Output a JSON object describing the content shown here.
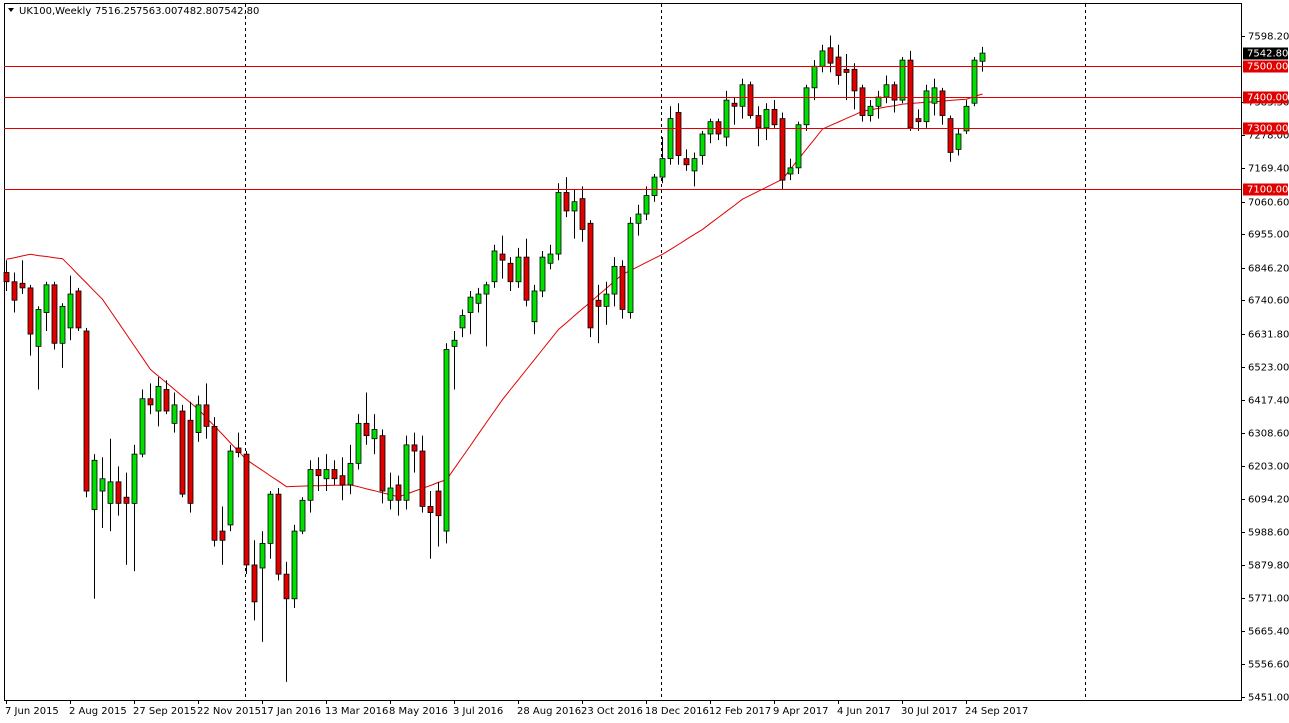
{
  "chart_data": {
    "type": "candlestick",
    "title": "UK100,Weekly",
    "header_values": [
      "7516.25",
      "7563.00",
      "7482.80",
      "7542.80"
    ],
    "up_color": "#00e000",
    "down_color": "#e00000",
    "wick_color": "#000000",
    "ma_color": "#e00000",
    "level_color": "#e00000",
    "ylim": [
      5441.2,
      7702.3
    ],
    "yticks": [
      {
        "value": 7598.2,
        "label": "7598.20"
      },
      {
        "value": 7383.5,
        "label": "7383.50"
      },
      {
        "value": 7278,
        "label": "7278.00"
      },
      {
        "value": 7169.4,
        "label": "7169.40"
      },
      {
        "value": 7060.6,
        "label": "7060.60"
      },
      {
        "value": 6955,
        "label": "6955.00"
      },
      {
        "value": 6846.2,
        "label": "6846.20"
      },
      {
        "value": 6740.6,
        "label": "6740.60"
      },
      {
        "value": 6631.8,
        "label": "6631.80"
      },
      {
        "value": 6523,
        "label": "6523.00"
      },
      {
        "value": 6417.4,
        "label": "6417.40"
      },
      {
        "value": 6308.6,
        "label": "6308.60"
      },
      {
        "value": 6203,
        "label": "6203.00"
      },
      {
        "value": 6094.2,
        "label": "6094.20"
      },
      {
        "value": 5988.6,
        "label": "5988.60"
      },
      {
        "value": 5879.8,
        "label": "5879.80"
      },
      {
        "value": 5771,
        "label": "5771.00"
      },
      {
        "value": 5665.4,
        "label": "5665.40"
      },
      {
        "value": 5556.6,
        "label": "5556.60"
      },
      {
        "value": 5451,
        "label": "5451.00"
      }
    ],
    "levels": [
      {
        "value": 7500,
        "label": "7500.00"
      },
      {
        "value": 7400,
        "label": "7400.00"
      },
      {
        "value": 7300,
        "label": "7300.00"
      },
      {
        "value": 7100,
        "label": "7100.00"
      }
    ],
    "last_price": {
      "value": 7542.8,
      "label": "7542.80"
    },
    "categories": [
      "7 Jun 2015",
      null,
      null,
      null,
      null,
      null,
      null,
      null,
      "2 Aug 2015",
      null,
      null,
      null,
      null,
      null,
      null,
      null,
      "27 Sep 2015",
      null,
      null,
      null,
      null,
      null,
      null,
      null,
      "22 Nov 2015",
      null,
      null,
      null,
      null,
      null,
      null,
      null,
      "17 Jan 2016",
      null,
      null,
      null,
      null,
      null,
      null,
      null,
      "13 Mar 2016",
      null,
      null,
      null,
      null,
      null,
      null,
      null,
      "8 May 2016",
      null,
      null,
      null,
      null,
      null,
      null,
      null,
      "3 Jul 2016",
      null,
      null,
      null,
      null,
      null,
      null,
      null,
      "28 Aug 2016",
      null,
      null,
      null,
      null,
      null,
      null,
      null,
      "23 Oct 2016",
      null,
      null,
      null,
      null,
      null,
      null,
      null,
      "18 Dec 2016",
      null,
      null,
      null,
      null,
      null,
      null,
      null,
      "12 Feb 2017",
      null,
      null,
      null,
      null,
      null,
      null,
      null,
      "9 Apr 2017",
      null,
      null,
      null,
      null,
      null,
      null,
      null,
      "4 Jun 2017",
      null,
      null,
      null,
      null,
      null,
      null,
      null,
      "30 Jul 2017",
      null,
      null,
      null,
      null,
      null,
      null,
      null,
      "24 Sep 2017",
      null,
      null
    ],
    "candles": [
      [
        6830,
        6870,
        6770,
        6800
      ],
      [
        6800,
        6830,
        6700,
        6740
      ],
      [
        6795,
        6870,
        6760,
        6780
      ],
      [
        6780,
        6790,
        6560,
        6630
      ],
      [
        6590,
        6720,
        6450,
        6710
      ],
      [
        6700,
        6800,
        6640,
        6790
      ],
      [
        6790,
        6800,
        6580,
        6600
      ],
      [
        6600,
        6730,
        6520,
        6720
      ],
      [
        6650,
        6820,
        6610,
        6760
      ],
      [
        6770,
        6780,
        6640,
        6650
      ],
      [
        6640,
        6650,
        6100,
        6120
      ],
      [
        6060,
        6240,
        5770,
        6220
      ],
      [
        6120,
        6230,
        6000,
        6160
      ],
      [
        6080,
        6290,
        5990,
        6150
      ],
      [
        6150,
        6200,
        6040,
        6080
      ],
      [
        6100,
        6180,
        5880,
        6080
      ],
      [
        6080,
        6270,
        5860,
        6240
      ],
      [
        6240,
        6450,
        6230,
        6420
      ],
      [
        6420,
        6470,
        6370,
        6400
      ],
      [
        6380,
        6490,
        6330,
        6460
      ],
      [
        6450,
        6480,
        6370,
        6380
      ],
      [
        6340,
        6440,
        6310,
        6400
      ],
      [
        6380,
        6400,
        6100,
        6110
      ],
      [
        6350,
        6410,
        6050,
        6080
      ],
      [
        6310,
        6430,
        6280,
        6400
      ],
      [
        6400,
        6470,
        6290,
        6330
      ],
      [
        6330,
        6360,
        5940,
        5960
      ],
      [
        5990,
        6070,
        5880,
        5960
      ],
      [
        6010,
        6270,
        5990,
        6250
      ],
      [
        6260,
        6310,
        6230,
        6245
      ],
      [
        6240,
        6250,
        5850,
        5880
      ],
      [
        5880,
        5960,
        5700,
        5760
      ],
      [
        5870,
        5990,
        5630,
        5950
      ],
      [
        5950,
        6120,
        5900,
        6110
      ],
      [
        6110,
        6130,
        5830,
        5850
      ],
      [
        5850,
        5890,
        5500,
        5770
      ],
      [
        5770,
        6010,
        5740,
        5990
      ],
      [
        5990,
        6100,
        5980,
        6090
      ],
      [
        6090,
        6220,
        6050,
        6190
      ],
      [
        6190,
        6230,
        6120,
        6170
      ],
      [
        6160,
        6240,
        6120,
        6190
      ],
      [
        6190,
        6220,
        6140,
        6160
      ],
      [
        6170,
        6230,
        6090,
        6140
      ],
      [
        6140,
        6270,
        6110,
        6210
      ],
      [
        6210,
        6370,
        6190,
        6340
      ],
      [
        6340,
        6440,
        6270,
        6300
      ],
      [
        6290,
        6370,
        6240,
        6320
      ],
      [
        6300,
        6320,
        6080,
        6120
      ],
      [
        6090,
        6180,
        6060,
        6130
      ],
      [
        6140,
        6170,
        6040,
        6090
      ],
      [
        6090,
        6300,
        6060,
        6270
      ],
      [
        6270,
        6310,
        6180,
        6250
      ],
      [
        6250,
        6300,
        6050,
        6070
      ],
      [
        6070,
        6120,
        5900,
        6050
      ],
      [
        6120,
        6150,
        5940,
        6040
      ],
      [
        5990,
        6600,
        5950,
        6580
      ],
      [
        6590,
        6640,
        6450,
        6610
      ],
      [
        6650,
        6710,
        6620,
        6690
      ],
      [
        6700,
        6770,
        6630,
        6750
      ],
      [
        6730,
        6780,
        6700,
        6760
      ],
      [
        6760,
        6800,
        6590,
        6790
      ],
      [
        6800,
        6920,
        6780,
        6900
      ],
      [
        6890,
        6950,
        6810,
        6870
      ],
      [
        6860,
        6880,
        6770,
        6800
      ],
      [
        6800,
        6910,
        6780,
        6880
      ],
      [
        6880,
        6940,
        6720,
        6740
      ],
      [
        6670,
        6790,
        6630,
        6770
      ],
      [
        6770,
        6900,
        6750,
        6880
      ],
      [
        6860,
        6920,
        6840,
        6890
      ],
      [
        6890,
        7120,
        6870,
        7090
      ],
      [
        7090,
        7140,
        7010,
        7030
      ],
      [
        7030,
        7100,
        6940,
        7060
      ],
      [
        7070,
        7110,
        6930,
        6970
      ],
      [
        6990,
        7000,
        6620,
        6650
      ],
      [
        6740,
        6790,
        6600,
        6720
      ],
      [
        6720,
        6800,
        6660,
        6760
      ],
      [
        6760,
        6880,
        6720,
        6850
      ],
      [
        6850,
        6870,
        6680,
        6710
      ],
      [
        6700,
        7010,
        6680,
        6990
      ],
      [
        6990,
        7050,
        6950,
        7020
      ],
      [
        7020,
        7110,
        7000,
        7080
      ],
      [
        7080,
        7150,
        7060,
        7140
      ],
      [
        7140,
        7270,
        7120,
        7200
      ],
      [
        7200,
        7370,
        7180,
        7330
      ],
      [
        7350,
        7380,
        7180,
        7210
      ],
      [
        7200,
        7230,
        7160,
        7180
      ],
      [
        7160,
        7220,
        7110,
        7200
      ],
      [
        7210,
        7290,
        7180,
        7280
      ],
      [
        7280,
        7330,
        7250,
        7320
      ],
      [
        7320,
        7330,
        7260,
        7280
      ],
      [
        7270,
        7420,
        7240,
        7390
      ],
      [
        7380,
        7400,
        7310,
        7370
      ],
      [
        7370,
        7460,
        7330,
        7440
      ],
      [
        7440,
        7450,
        7330,
        7340
      ],
      [
        7340,
        7370,
        7240,
        7300
      ],
      [
        7300,
        7380,
        7260,
        7360
      ],
      [
        7360,
        7390,
        7300,
        7310
      ],
      [
        7330,
        7350,
        7100,
        7130
      ],
      [
        7150,
        7200,
        7130,
        7170
      ],
      [
        7170,
        7320,
        7150,
        7310
      ],
      [
        7310,
        7440,
        7290,
        7430
      ],
      [
        7430,
        7520,
        7390,
        7500
      ],
      [
        7500,
        7570,
        7480,
        7550
      ],
      [
        7560,
        7600,
        7480,
        7510
      ],
      [
        7530,
        7570,
        7440,
        7470
      ],
      [
        7490,
        7540,
        7390,
        7480
      ],
      [
        7490,
        7510,
        7360,
        7420
      ],
      [
        7430,
        7440,
        7320,
        7340
      ],
      [
        7340,
        7390,
        7320,
        7370
      ],
      [
        7370,
        7420,
        7330,
        7400
      ],
      [
        7400,
        7470,
        7380,
        7440
      ],
      [
        7440,
        7450,
        7350,
        7390
      ],
      [
        7390,
        7530,
        7380,
        7520
      ],
      [
        7520,
        7550,
        7290,
        7300
      ],
      [
        7330,
        7360,
        7290,
        7320
      ],
      [
        7320,
        7440,
        7300,
        7420
      ],
      [
        7380,
        7460,
        7340,
        7430
      ],
      [
        7420,
        7430,
        7310,
        7340
      ],
      [
        7330,
        7340,
        7190,
        7220
      ],
      [
        7230,
        7300,
        7210,
        7280
      ],
      [
        7290,
        7390,
        7280,
        7370
      ],
      [
        7380,
        7530,
        7370,
        7520
      ],
      [
        7516.25,
        7563,
        7482.8,
        7542.8
      ]
    ],
    "ma": [
      6873,
      6878,
      6884,
      6889,
      6885,
      6882,
      6878,
      6875,
      6849,
      6822,
      6796,
      6769,
      6743,
      6705,
      6667,
      6629,
      6591,
      6553,
      6515,
      6493,
      6472,
      6450,
      6428,
      6407,
      6385,
      6358,
      6331,
      6304,
      6276,
      6249,
      6222,
      6204,
      6187,
      6169,
      6152,
      6134,
      6135,
      6136,
      6137,
      6137,
      6138,
      6139,
      6139,
      6140,
      6134,
      6127,
      6121,
      6114,
      6108,
      6101,
      6110,
      6120,
      6129,
      6138,
      6148,
      6157,
      6194,
      6231,
      6268,
      6306,
      6343,
      6380,
      6417,
      6450,
      6482,
      6515,
      6547,
      6580,
      6612,
      6645,
      6667,
      6690,
      6712,
      6734,
      6757,
      6779,
      6802,
      6824,
      6837,
      6850,
      6863,
      6876,
      6889,
      6905,
      6921,
      6938,
      6954,
      6970,
      6990,
      7009,
      7029,
      7048,
      7068,
      7081,
      7094,
      7107,
      7120,
      7133,
      7166,
      7198,
      7231,
      7263,
      7296,
      7308,
      7319,
      7331,
      7342,
      7354,
      7359,
      7363,
      7368,
      7372,
      7377,
      7379,
      7381,
      7383,
      7385,
      7387,
      7389,
      7391,
      7393,
      7402,
      7410
    ]
  }
}
